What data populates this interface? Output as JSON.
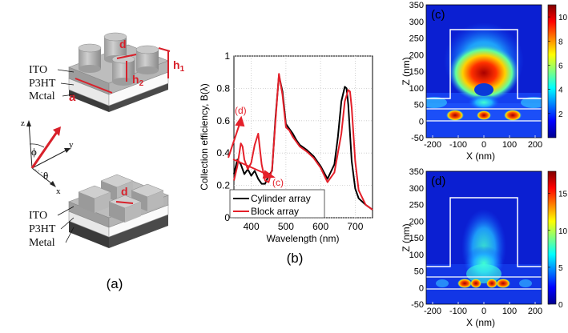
{
  "panel_a": {
    "label": "(a)",
    "cylinder_layers": [
      "ITO",
      "P3HT",
      "Mctal"
    ],
    "block_layers": [
      "ITO",
      "P3HT",
      "Metal"
    ],
    "dims": {
      "d": "d",
      "h1": "h",
      "h1_sub": "1",
      "h2": "h",
      "h2_sub": "2",
      "a": "a"
    },
    "block_dim": "d",
    "axes": {
      "z": "z",
      "y": "y",
      "x": "x",
      "phi": "ϕ",
      "theta": "θ"
    },
    "colors": {
      "accent": "#d8212b",
      "gray": "#a9a9a9"
    }
  },
  "chart_data": [
    {
      "id": "b",
      "type": "line",
      "panel_label": "(b)",
      "xlabel": "Wavelength (nm)",
      "ylabel": "Collection efficiency, B(λ)",
      "xlim": [
        350,
        750
      ],
      "ylim": [
        0,
        1
      ],
      "xticks": [
        400,
        500,
        600,
        700
      ],
      "yticks": [
        0,
        0.2,
        0.4,
        0.6,
        0.8,
        1
      ],
      "grid": true,
      "legend_position": "bottom-left",
      "annotations": [
        "(d)",
        "(c)"
      ],
      "series": [
        {
          "name": "Cylinder array",
          "color": "#000000",
          "x": [
            350,
            360,
            370,
            380,
            390,
            400,
            410,
            420,
            430,
            440,
            450,
            460,
            470,
            480,
            490,
            500,
            510,
            520,
            530,
            540,
            560,
            580,
            600,
            620,
            640,
            650,
            660,
            670,
            675,
            680,
            690,
            700,
            710,
            730,
            750
          ],
          "y": [
            0.27,
            0.36,
            0.33,
            0.27,
            0.3,
            0.26,
            0.29,
            0.24,
            0.21,
            0.21,
            0.26,
            0.29,
            0.62,
            0.88,
            0.78,
            0.58,
            0.55,
            0.52,
            0.48,
            0.45,
            0.42,
            0.38,
            0.32,
            0.24,
            0.33,
            0.5,
            0.72,
            0.81,
            0.8,
            0.7,
            0.35,
            0.18,
            0.12,
            0.08,
            0.05
          ]
        },
        {
          "name": "Block array",
          "color": "#e4202a",
          "x": [
            350,
            360,
            370,
            375,
            380,
            390,
            400,
            410,
            420,
            430,
            440,
            450,
            460,
            470,
            480,
            490,
            500,
            510,
            520,
            530,
            540,
            560,
            580,
            600,
            620,
            640,
            660,
            670,
            680,
            685,
            690,
            700,
            710,
            730,
            750
          ],
          "y": [
            0.23,
            0.32,
            0.46,
            0.44,
            0.36,
            0.3,
            0.34,
            0.45,
            0.52,
            0.33,
            0.23,
            0.22,
            0.3,
            0.6,
            0.89,
            0.76,
            0.56,
            0.54,
            0.5,
            0.47,
            0.44,
            0.41,
            0.37,
            0.31,
            0.22,
            0.28,
            0.52,
            0.72,
            0.79,
            0.78,
            0.68,
            0.35,
            0.17,
            0.08,
            0.05
          ]
        }
      ]
    },
    {
      "id": "c",
      "type": "heatmap",
      "panel_label": "(c)",
      "xlabel": "X (nm)",
      "ylabel": "Z (nm)",
      "xlim": [
        -225,
        225
      ],
      "ylim": [
        -50,
        350
      ],
      "xticks": [
        -200,
        -100,
        0,
        100,
        200
      ],
      "yticks": [
        -50,
        0,
        50,
        100,
        150,
        200,
        250,
        300,
        350
      ],
      "colorbar_ticks": [
        2,
        4,
        6,
        8,
        10
      ],
      "colorbar_range": [
        0,
        11
      ]
    },
    {
      "id": "d",
      "type": "heatmap",
      "panel_label": "(d)",
      "xlabel": "X (nm)",
      "ylabel": "Z (nm)",
      "xlim": [
        -225,
        225
      ],
      "ylim": [
        -50,
        350
      ],
      "xticks": [
        -200,
        -100,
        0,
        100,
        200
      ],
      "yticks": [
        -50,
        0,
        50,
        100,
        150,
        200,
        250,
        300,
        350
      ],
      "colorbar_ticks": [
        0,
        5,
        10,
        15
      ],
      "colorbar_range": [
        0,
        18
      ]
    }
  ]
}
